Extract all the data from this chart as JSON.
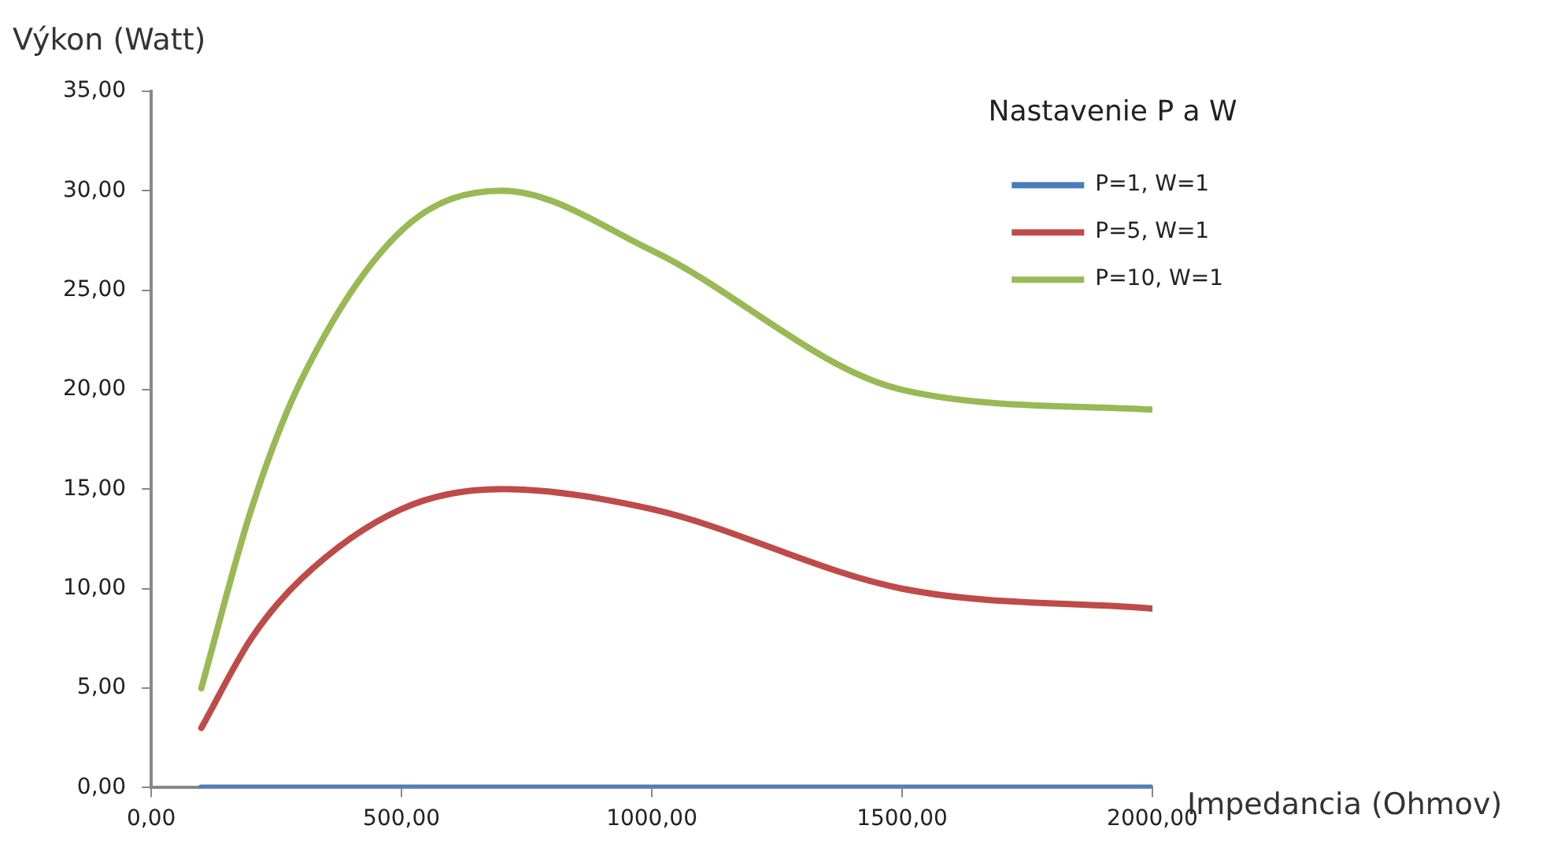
{
  "chart_data": {
    "type": "line",
    "xlabel": "Impedancia (Ohmov)",
    "ylabel": "Výkon (Watt)",
    "legend_title": "Nastavenie P a W",
    "legend": "top right",
    "grid": false,
    "x": [
      100,
      200,
      300,
      500,
      700,
      1000,
      1500,
      2000
    ],
    "xlim": [
      0,
      2000
    ],
    "xticks": [
      {
        "value": 0,
        "label": "0,00"
      },
      {
        "value": 500,
        "label": "500,00"
      },
      {
        "value": 1000,
        "label": "1000,00"
      },
      {
        "value": 1500,
        "label": "1500,00"
      },
      {
        "value": 2000,
        "label": "2000,00"
      }
    ],
    "ylim": [
      0,
      35
    ],
    "yticks": [
      {
        "value": 0,
        "label": "0,00"
      },
      {
        "value": 5,
        "label": "5,00"
      },
      {
        "value": 10,
        "label": "10,00"
      },
      {
        "value": 15,
        "label": "15,00"
      },
      {
        "value": 20,
        "label": "20,00"
      },
      {
        "value": 25,
        "label": "25,00"
      },
      {
        "value": 30,
        "label": "30,00"
      },
      {
        "value": 35,
        "label": "35,00"
      }
    ],
    "series": [
      {
        "name": "P=1, W=1",
        "color": "#4a7ebb",
        "values": [
          0,
          0,
          0,
          0,
          0,
          0,
          0,
          0
        ]
      },
      {
        "name": "P=5, W=1",
        "color": "#be4b48",
        "values": [
          3,
          7.5,
          10.5,
          14,
          15,
          14,
          10,
          9
        ]
      },
      {
        "name": "P=10, W=1",
        "color": "#98b954",
        "values": [
          5,
          14,
          20.5,
          28,
          30,
          27,
          20,
          19
        ]
      }
    ]
  }
}
